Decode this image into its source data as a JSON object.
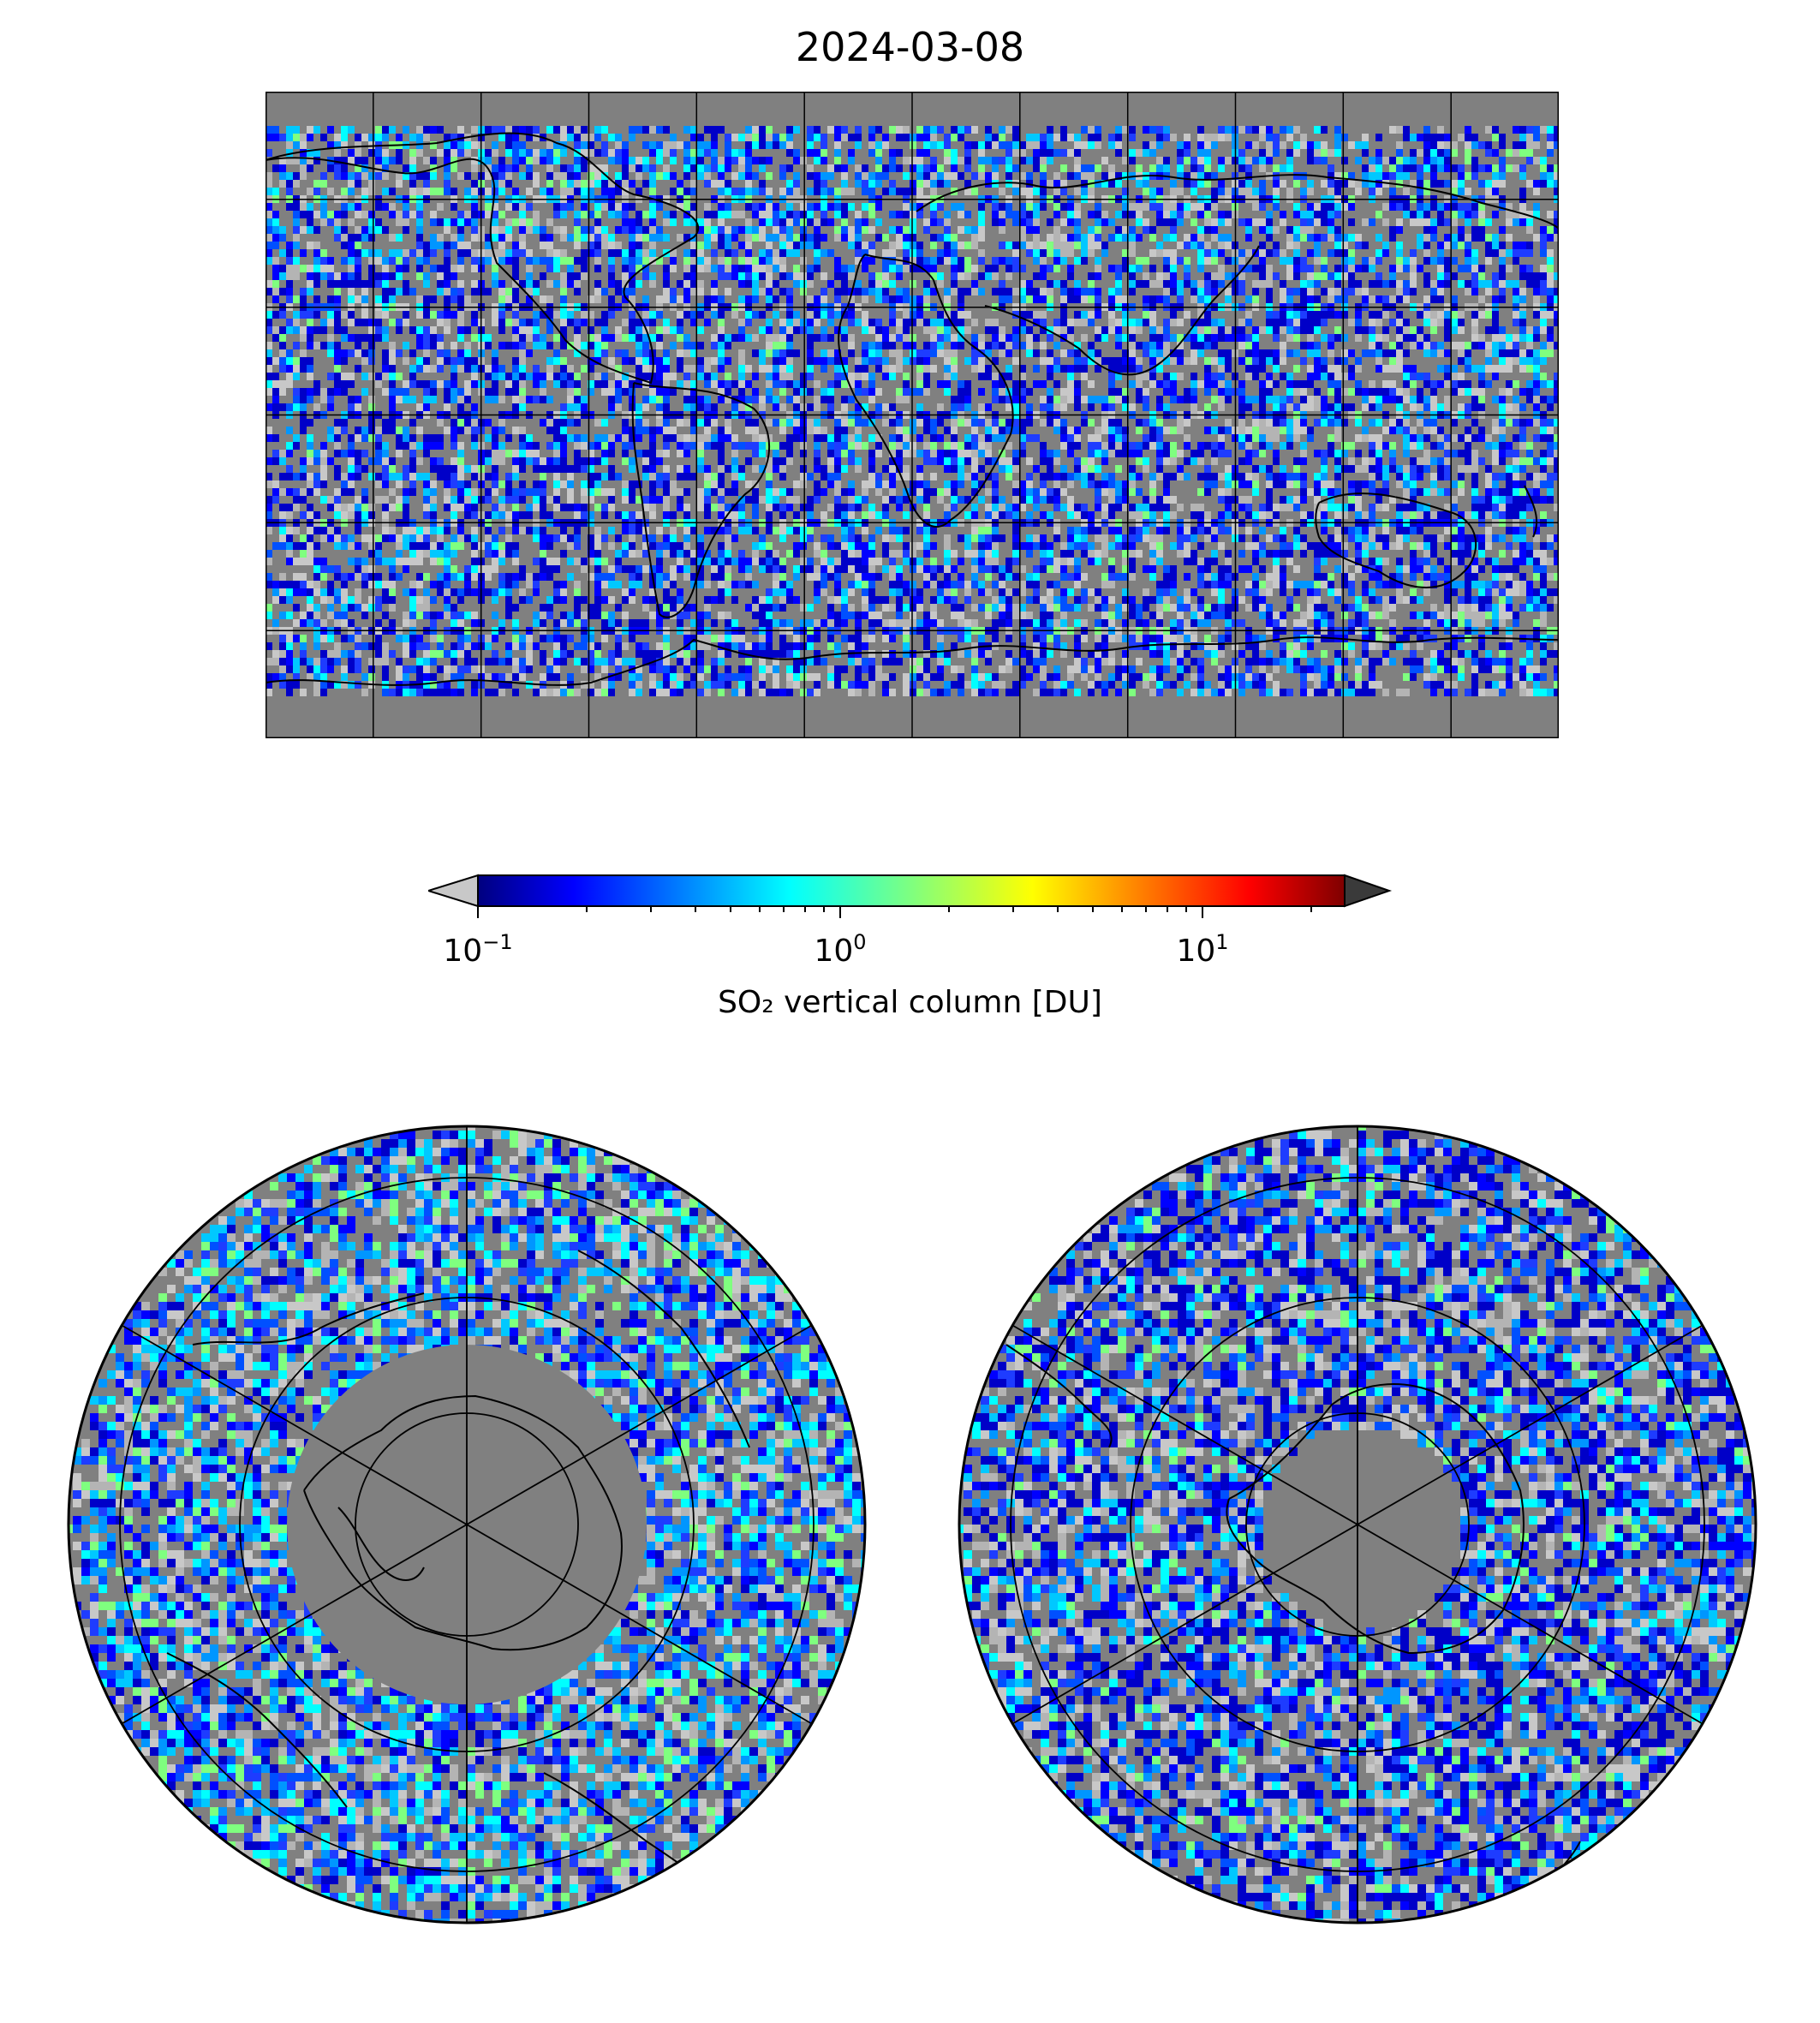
{
  "title": "2024-03-08",
  "colorbar": {
    "label": "SO₂ vertical column [DU]",
    "scale": "log",
    "range": [
      0.1,
      25
    ],
    "ticks": [
      {
        "base": "10",
        "exp": "−1",
        "value": 0.1
      },
      {
        "base": "10",
        "exp": "0",
        "value": 1
      },
      {
        "base": "10",
        "exp": "1",
        "value": 10
      }
    ],
    "colormap": "jet",
    "under_color": "#c8c8c8",
    "over_color": "#3a3a3a"
  },
  "map": {
    "no_data_color": "#808080",
    "coastline_color": "#000000",
    "panels": [
      "global-equirectangular",
      "north-polar-stereographic",
      "south-polar-stereographic"
    ]
  }
}
